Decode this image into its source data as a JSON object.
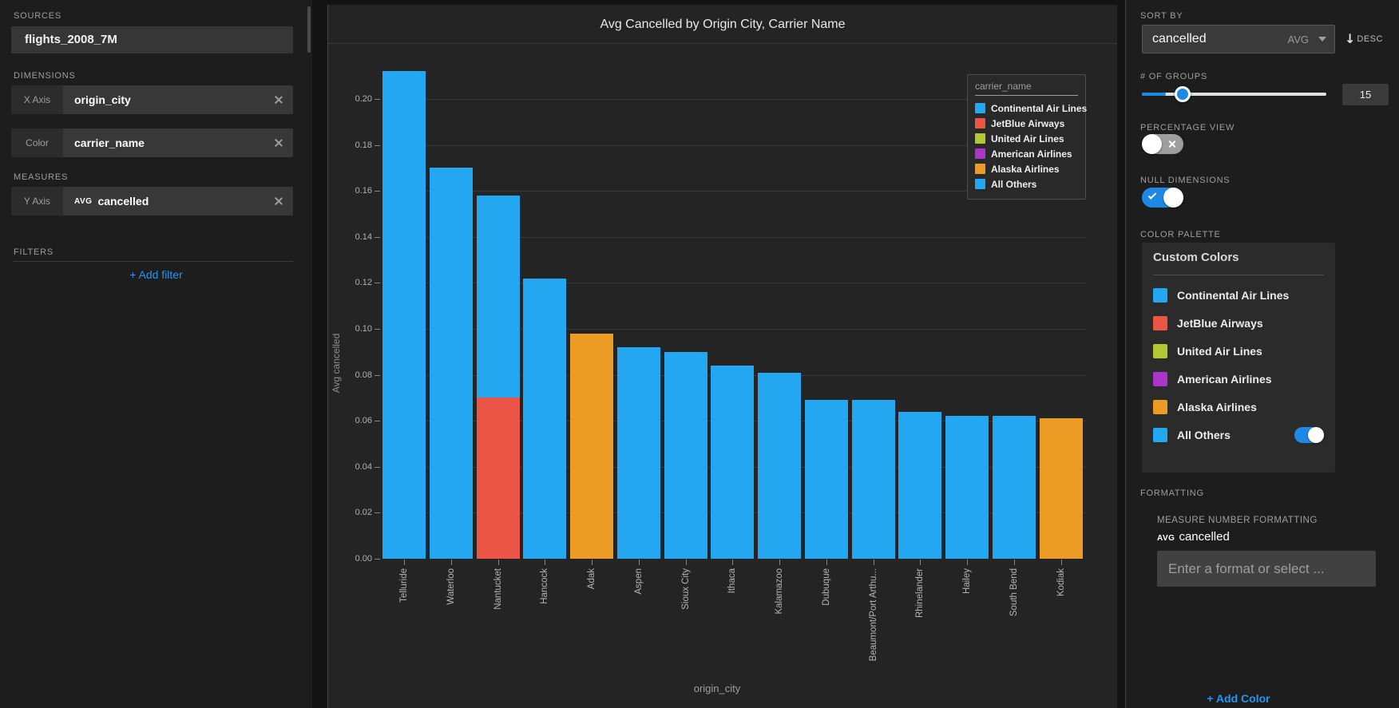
{
  "colors": {
    "blue": "#22a7f0",
    "red": "#ea5545",
    "green": "#b2c832",
    "purple": "#aa35c8",
    "orange": "#ec9b24",
    "accent": "#1e88e5",
    "link": "#2196f3"
  },
  "left_sidebar": {
    "sources_label": "SOURCES",
    "source_name": "flights_2008_7M",
    "dimensions_label": "DIMENSIONS",
    "x_axis_tag": "X Axis",
    "x_axis_value": "origin_city",
    "color_tag": "Color",
    "color_value": "carrier_name",
    "measures_label": "MEASURES",
    "y_axis_tag": "Y Axis",
    "y_axis_agg": "AVG",
    "y_axis_value": "cancelled",
    "filters_label": "FILTERS",
    "add_filter_label": "+ Add filter"
  },
  "chart": {
    "title": "Avg Cancelled by Origin City, Carrier Name",
    "legend": {
      "header": "carrier_name",
      "items": [
        {
          "label": "Continental Air Lines",
          "color": "#22a7f0"
        },
        {
          "label": "JetBlue Airways",
          "color": "#ea5545"
        },
        {
          "label": "United Air Lines",
          "color": "#b2c832"
        },
        {
          "label": "American Airlines",
          "color": "#aa35c8"
        },
        {
          "label": "Alaska Airlines",
          "color": "#ec9b24"
        },
        {
          "label": "All Others",
          "color": "#22a7f0"
        }
      ]
    }
  },
  "chart_data": {
    "type": "bar",
    "stacked": true,
    "title": "Avg Cancelled by Origin City, Carrier Name",
    "xlabel": "origin_city",
    "ylabel": "Avg cancelled",
    "ylim": [
      0,
      0.213
    ],
    "grid": true,
    "legend_position": "top-right",
    "yticks": [
      "0.00",
      "0.02",
      "0.04",
      "0.06",
      "0.08",
      "0.10",
      "0.12",
      "0.14",
      "0.16",
      "0.18",
      "0.20"
    ],
    "categories": [
      "Telluride",
      "Waterloo",
      "Nantucket",
      "Hancock",
      "Adak",
      "Aspen",
      "Sioux City",
      "Ithaca",
      "Kalamazoo",
      "Dubuque",
      "Beaumont/Port Arthu...",
      "Rhinelander",
      "Hailey",
      "South Bend",
      "Kodiak"
    ],
    "bars": [
      {
        "label": "Telluride",
        "total": 0.212,
        "segments": [
          {
            "value": 0.212,
            "color": "#22a7f0"
          }
        ]
      },
      {
        "label": "Waterloo",
        "total": 0.17,
        "segments": [
          {
            "value": 0.17,
            "color": "#22a7f0"
          }
        ]
      },
      {
        "label": "Nantucket",
        "total": 0.158,
        "segments": [
          {
            "value": 0.07,
            "color": "#ea5545"
          },
          {
            "value": 0.088,
            "color": "#22a7f0"
          }
        ]
      },
      {
        "label": "Hancock",
        "total": 0.122,
        "segments": [
          {
            "value": 0.122,
            "color": "#22a7f0"
          }
        ]
      },
      {
        "label": "Adak",
        "total": 0.098,
        "segments": [
          {
            "value": 0.098,
            "color": "#ec9b24"
          }
        ]
      },
      {
        "label": "Aspen",
        "total": 0.092,
        "segments": [
          {
            "value": 0.092,
            "color": "#22a7f0"
          }
        ]
      },
      {
        "label": "Sioux City",
        "total": 0.09,
        "segments": [
          {
            "value": 0.09,
            "color": "#22a7f0"
          }
        ]
      },
      {
        "label": "Ithaca",
        "total": 0.084,
        "segments": [
          {
            "value": 0.084,
            "color": "#22a7f0"
          }
        ]
      },
      {
        "label": "Kalamazoo",
        "total": 0.081,
        "segments": [
          {
            "value": 0.081,
            "color": "#22a7f0"
          }
        ]
      },
      {
        "label": "Dubuque",
        "total": 0.069,
        "segments": [
          {
            "value": 0.069,
            "color": "#22a7f0"
          }
        ]
      },
      {
        "label": "Beaumont/Port Arthu...",
        "total": 0.069,
        "segments": [
          {
            "value": 0.069,
            "color": "#22a7f0"
          }
        ]
      },
      {
        "label": "Rhinelander",
        "total": 0.064,
        "segments": [
          {
            "value": 0.064,
            "color": "#22a7f0"
          }
        ]
      },
      {
        "label": "Hailey",
        "total": 0.062,
        "segments": [
          {
            "value": 0.062,
            "color": "#22a7f0"
          }
        ]
      },
      {
        "label": "South Bend",
        "total": 0.062,
        "segments": [
          {
            "value": 0.062,
            "color": "#22a7f0"
          }
        ]
      },
      {
        "label": "Kodiak",
        "total": 0.061,
        "segments": [
          {
            "value": 0.061,
            "color": "#ec9b24"
          }
        ]
      }
    ]
  },
  "right_sidebar": {
    "sort_by_label": "SORT BY",
    "sort_field": "cancelled",
    "sort_agg": "AVG",
    "sort_dir": "DESC",
    "sort_dir_arrow": "↓",
    "groups_label": "# OF GROUPS",
    "groups_value": "15",
    "percentage_label": "PERCENTAGE VIEW",
    "percentage_on": false,
    "null_dims_label": "NULL DIMENSIONS",
    "null_dims_on": true,
    "palette_label": "COLOR PALETTE",
    "palette_title": "Custom Colors",
    "palette_items": [
      {
        "label": "Continental Air Lines",
        "color": "#22a7f0"
      },
      {
        "label": "JetBlue Airways",
        "color": "#ea5545"
      },
      {
        "label": "United Air Lines",
        "color": "#b2c832"
      },
      {
        "label": "American Airlines",
        "color": "#aa35c8"
      },
      {
        "label": "Alaska Airlines",
        "color": "#ec9b24"
      },
      {
        "label": "All Others",
        "color": "#22a7f0",
        "toggle_on": true
      }
    ],
    "add_color_label": "+ Add Color",
    "formatting_label": "FORMATTING",
    "measure_formatting_label": "MEASURE NUMBER FORMATTING",
    "measure_agg": "AVG",
    "measure_name": "cancelled",
    "format_placeholder": "Enter a format or select ..."
  }
}
